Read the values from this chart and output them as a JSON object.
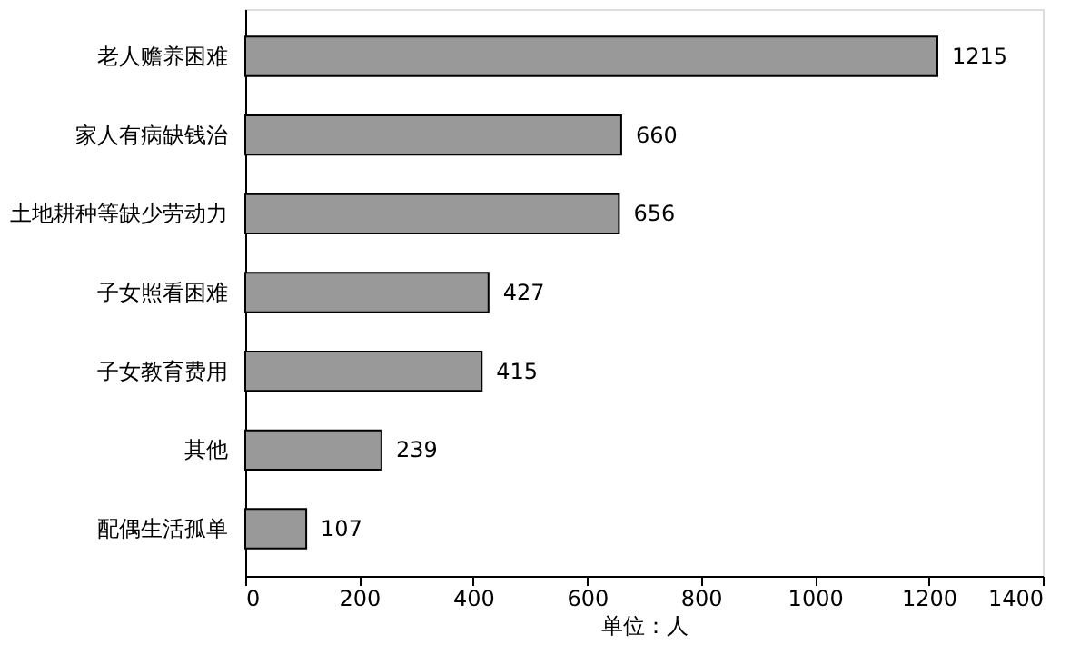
{
  "chart_data": {
    "type": "bar",
    "orientation": "horizontal",
    "xlabel": "单位：人",
    "categories": [
      "老人赡养困难",
      "家人有病缺钱治",
      "土地耕种等缺少劳动力",
      "子女照看困难",
      "子女教育费用",
      "其他",
      "配偶生活孤单"
    ],
    "values": [
      1215,
      660,
      656,
      427,
      415,
      239,
      107
    ],
    "color": "#999999",
    "xlim": [
      0,
      1400
    ],
    "xticks": [
      0,
      200,
      400,
      600,
      800,
      1000,
      1200,
      1400
    ],
    "grid": false,
    "data_labels": true
  }
}
